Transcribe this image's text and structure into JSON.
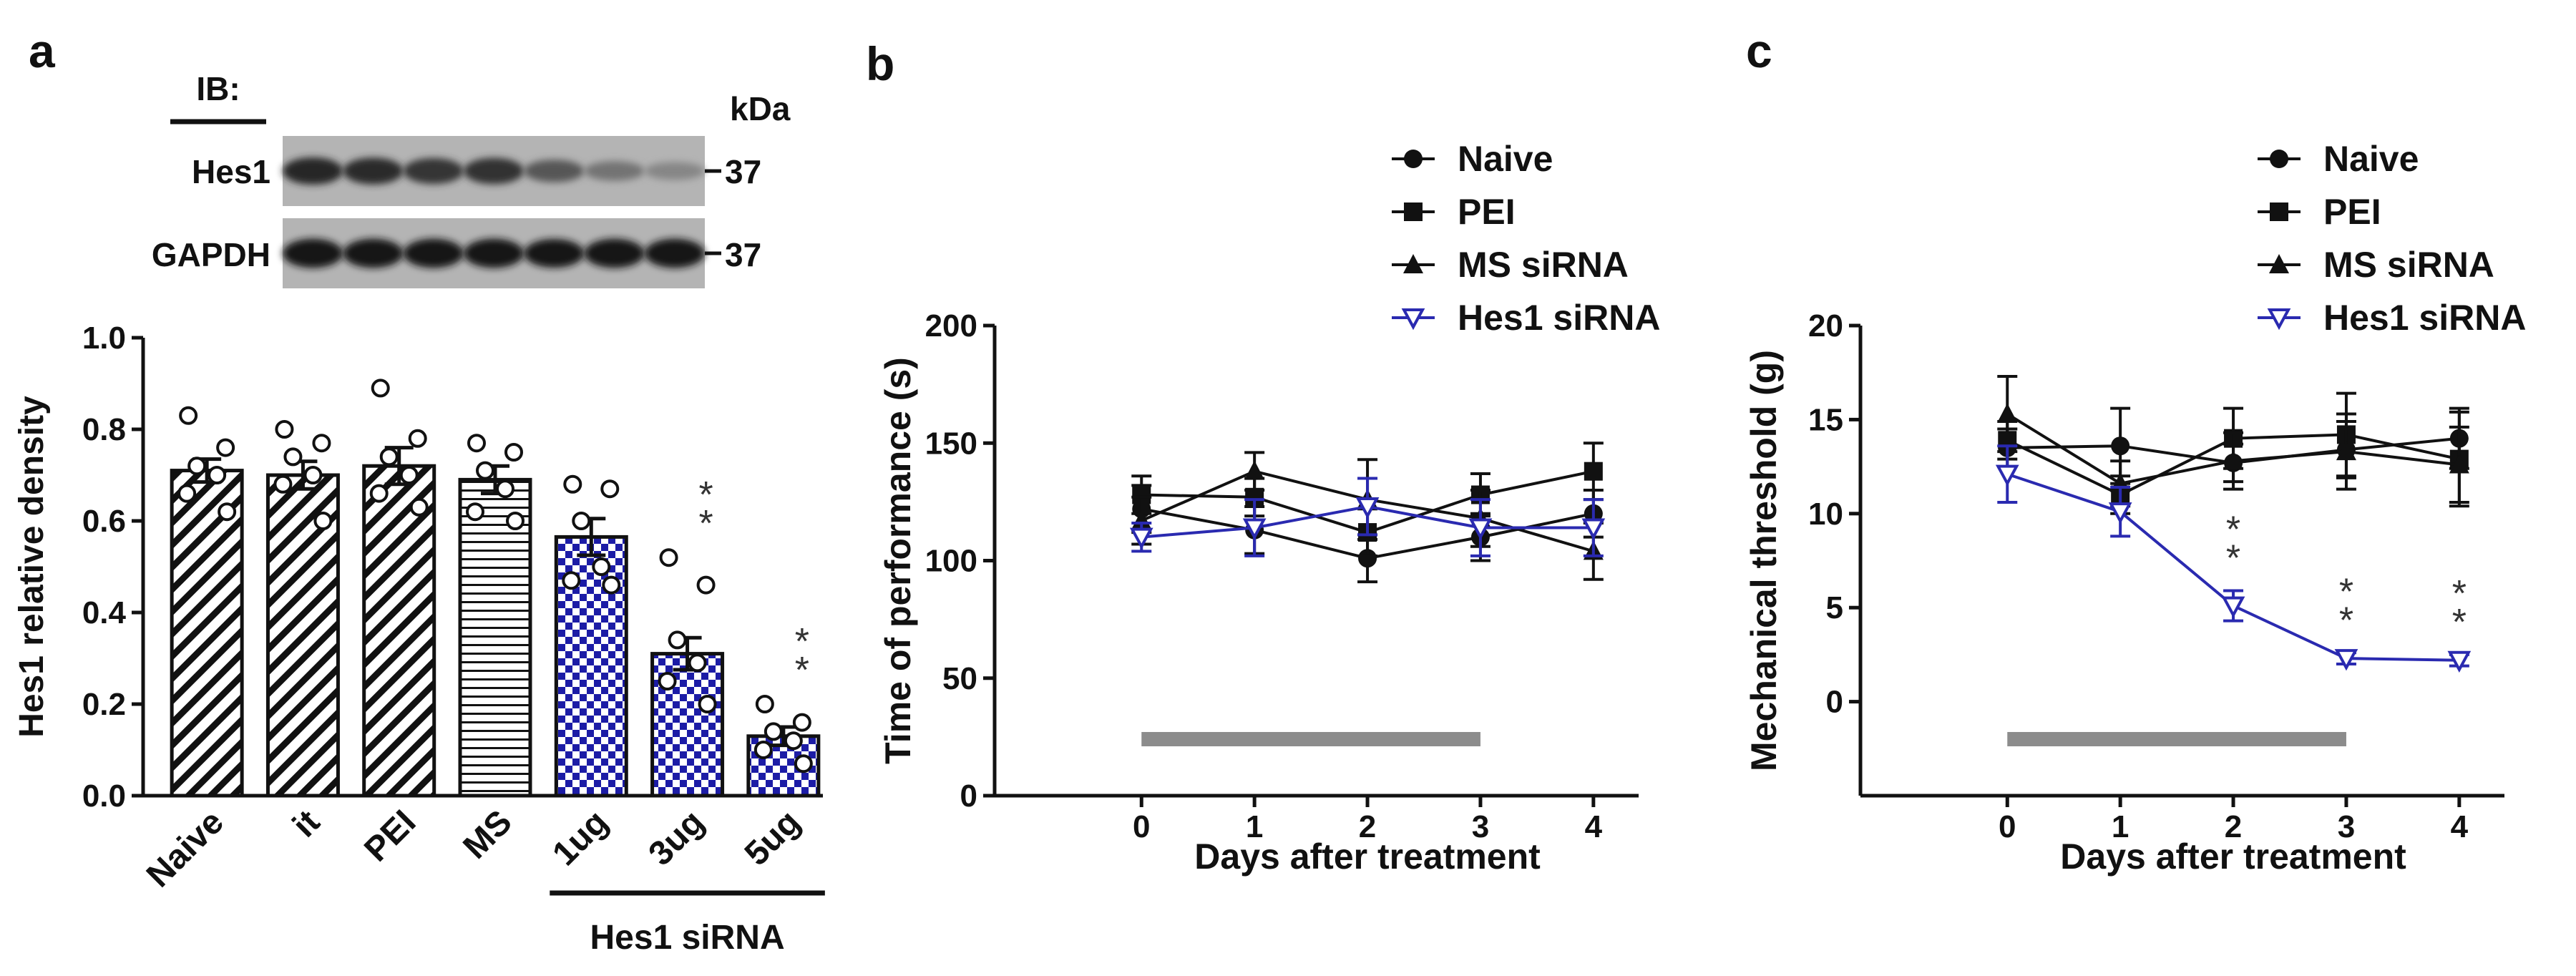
{
  "panels": {
    "a": {
      "letter": "a",
      "blot": {
        "ib_label": "IB:",
        "kda_label": "kDa",
        "rows": [
          {
            "name": "Hes1",
            "marker": "37",
            "intensities": [
              0.85,
              0.82,
              0.78,
              0.8,
              0.6,
              0.45,
              0.35
            ]
          },
          {
            "name": "GAPDH",
            "marker": "37",
            "intensities": [
              0.95,
              0.95,
              0.95,
              0.95,
              0.92,
              0.95,
              0.95
            ]
          }
        ]
      }
    },
    "b": {
      "letter": "b"
    },
    "c": {
      "letter": "c"
    }
  },
  "colors": {
    "black": "#111111",
    "blue": "#2a2ab0",
    "gray_bar": "#8c8c8c"
  },
  "chart_data": [
    {
      "id": "a",
      "type": "bar",
      "ylabel": "Hes1 relative density",
      "ylim": [
        0,
        1.0
      ],
      "yticks": [
        0.0,
        0.2,
        0.4,
        0.6,
        0.8,
        1.0
      ],
      "ytick_labels": [
        "0.0",
        "0.2",
        "0.4",
        "0.6",
        "0.8",
        "1.0"
      ],
      "categories": [
        "Naive",
        "it",
        "PEI",
        "MS",
        "1ug",
        "3ug",
        "5ug"
      ],
      "values": [
        0.71,
        0.7,
        0.72,
        0.69,
        0.565,
        0.31,
        0.13
      ],
      "sem": [
        0.025,
        0.03,
        0.04,
        0.03,
        0.04,
        0.035,
        0.02
      ],
      "patterns": [
        "diag",
        "diag",
        "diag",
        "horiz",
        "check",
        "check",
        "check"
      ],
      "points": [
        [
          0.83,
          0.76,
          0.72,
          0.7,
          0.66,
          0.62
        ],
        [
          0.8,
          0.77,
          0.74,
          0.7,
          0.68,
          0.6
        ],
        [
          0.89,
          0.78,
          0.74,
          0.7,
          0.66,
          0.63
        ],
        [
          0.77,
          0.75,
          0.71,
          0.67,
          0.62,
          0.6
        ],
        [
          0.68,
          0.67,
          0.6,
          0.5,
          0.47,
          0.46
        ],
        [
          0.52,
          0.46,
          0.34,
          0.29,
          0.25,
          0.2
        ],
        [
          0.2,
          0.16,
          0.14,
          0.12,
          0.1,
          0.07
        ]
      ],
      "significance": [
        {
          "index": 5,
          "label": "**"
        },
        {
          "index": 6,
          "label": "**"
        }
      ],
      "group_label": "Hes1 siRNA",
      "group_start": 4,
      "group_end": 6
    },
    {
      "id": "b",
      "type": "line",
      "xlabel": "Days after treatment",
      "ylabel": "Time of performance (s)",
      "x": [
        0,
        1,
        2,
        3,
        4
      ],
      "xlim": [
        -1.3,
        4.4
      ],
      "xticks": [
        0,
        1,
        2,
        3,
        4
      ],
      "xtick_labels": [
        "0",
        "1",
        "2",
        "3",
        "4"
      ],
      "ylim": [
        0,
        200
      ],
      "yticks": [
        0,
        50,
        100,
        150,
        200
      ],
      "ytick_labels": [
        "0",
        "50",
        "100",
        "150",
        "200"
      ],
      "series": [
        {
          "name": "Naive",
          "marker": "circle",
          "color": "#111111",
          "values": [
            122,
            113,
            101,
            110,
            120
          ],
          "err": [
            10,
            10,
            10,
            10,
            10
          ]
        },
        {
          "name": "PEI",
          "marker": "square",
          "color": "#111111",
          "values": [
            128,
            127,
            112,
            128,
            138
          ],
          "err": [
            8,
            8,
            10,
            9,
            12
          ]
        },
        {
          "name": "MS siRNA",
          "marker": "triangle",
          "color": "#111111",
          "values": [
            117,
            138,
            126,
            118,
            104
          ],
          "err": [
            10,
            8,
            17,
            12,
            12
          ]
        },
        {
          "name": "Hes1 siRNA",
          "marker": "triangle-down-open",
          "color": "#2a2ab0",
          "values": [
            110,
            114,
            123,
            114,
            114
          ],
          "err": [
            6,
            12,
            12,
            12,
            12
          ]
        }
      ],
      "treatment_bar": [
        0,
        3
      ]
    },
    {
      "id": "c",
      "type": "line",
      "xlabel": "Days after treatment",
      "ylabel": "Mechanical threshold (g)",
      "x": [
        0,
        1,
        2,
        3,
        4
      ],
      "xlim": [
        -1.3,
        4.4
      ],
      "xticks": [
        0,
        1,
        2,
        3,
        4
      ],
      "xtick_labels": [
        "0",
        "1",
        "2",
        "3",
        "4"
      ],
      "ylim": [
        -5,
        20
      ],
      "yticks": [
        0,
        5,
        10,
        15,
        20
      ],
      "ytick_labels": [
        "0",
        "5",
        "10",
        "15",
        "20"
      ],
      "series": [
        {
          "name": "Naive",
          "marker": "circle",
          "color": "#111111",
          "values": [
            13.5,
            13.6,
            12.7,
            13.4,
            14.0
          ],
          "err": [
            1.0,
            2.0,
            1.0,
            1.5,
            1.6
          ]
        },
        {
          "name": "PEI",
          "marker": "square",
          "color": "#111111",
          "values": [
            13.9,
            11.0,
            14.0,
            14.2,
            12.9
          ],
          "err": [
            1.0,
            1.0,
            1.6,
            2.2,
            2.5
          ]
        },
        {
          "name": "MS siRNA",
          "marker": "triangle",
          "color": "#111111",
          "values": [
            15.3,
            11.6,
            12.8,
            13.3,
            12.6
          ],
          "err": [
            2.0,
            1.2,
            1.5,
            2.0,
            2.0
          ]
        },
        {
          "name": "Hes1 siRNA",
          "marker": "triangle-down-open",
          "color": "#2a2ab0",
          "values": [
            12.1,
            10.1,
            5.1,
            2.3,
            2.2
          ],
          "err": [
            1.5,
            1.3,
            0.8,
            0.3,
            0.3
          ]
        }
      ],
      "significance": [
        {
          "x": 2,
          "label": "**"
        },
        {
          "x": 3,
          "label": "**"
        },
        {
          "x": 4,
          "label": "**"
        }
      ],
      "treatment_bar": [
        0,
        3
      ]
    }
  ]
}
